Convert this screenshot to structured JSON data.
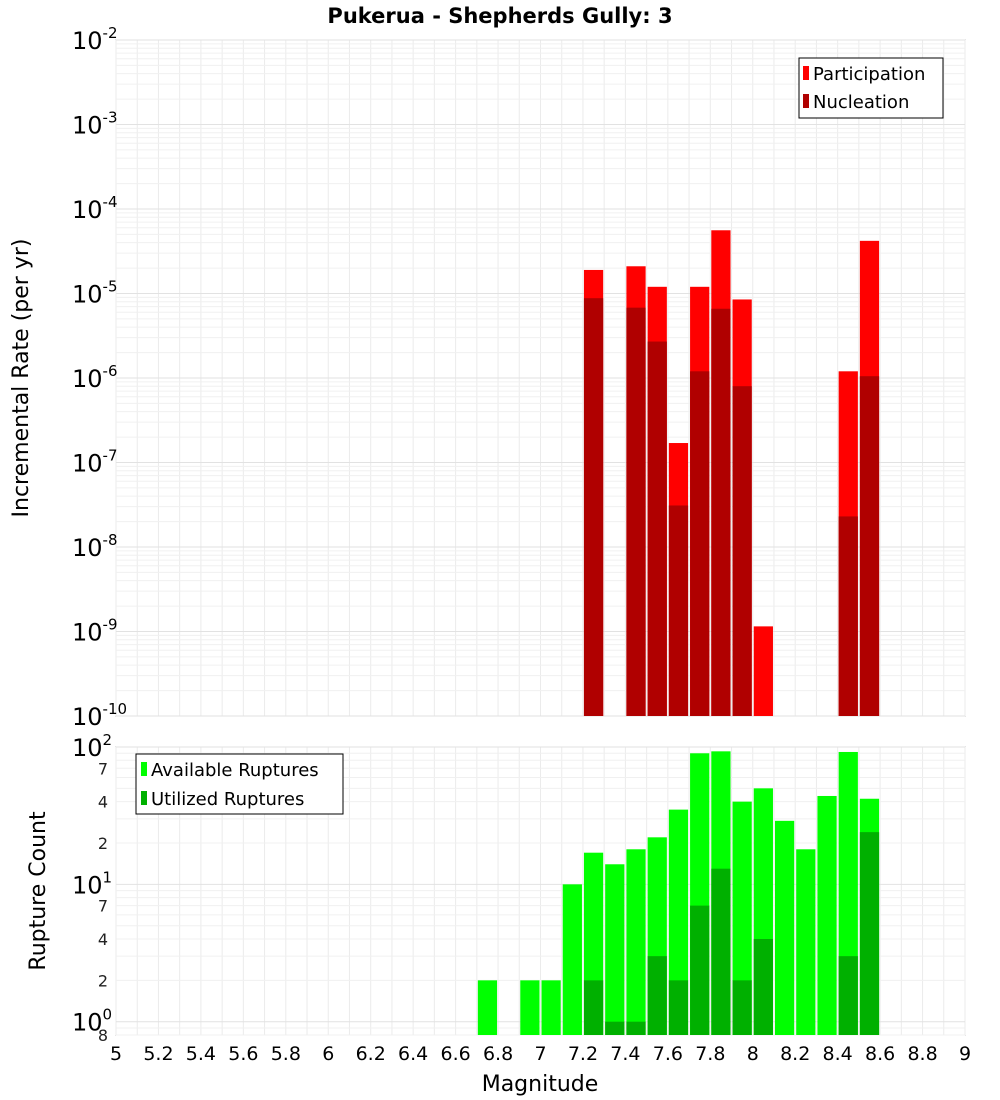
{
  "chart_data": [
    {
      "type": "bar",
      "title": "Pukerua - Shepherds Gully: 3",
      "xlabel": "",
      "ylabel": "Incremental Rate (per yr)",
      "xlim": [
        5,
        9
      ],
      "ylim": [
        1e-10,
        0.01
      ],
      "yscale": "log",
      "y_tick_exponents": [
        -2,
        -3,
        -4,
        -5,
        -6,
        -7,
        -8,
        -9,
        -10
      ],
      "grid": true,
      "legend_position": "top-right",
      "bar_width": 0.1,
      "series": [
        {
          "name": "Participation",
          "color": "#ff0000",
          "points": [
            {
              "x": 7.25,
              "y": 1.9e-05
            },
            {
              "x": 7.45,
              "y": 2.1e-05
            },
            {
              "x": 7.55,
              "y": 1.2e-05
            },
            {
              "x": 7.65,
              "y": 1.7e-07
            },
            {
              "x": 7.75,
              "y": 1.2e-05
            },
            {
              "x": 7.85,
              "y": 5.6e-05
            },
            {
              "x": 7.95,
              "y": 8.5e-06
            },
            {
              "x": 8.05,
              "y": 1.15e-09
            },
            {
              "x": 8.45,
              "y": 1.2e-06
            },
            {
              "x": 8.55,
              "y": 4.2e-05
            }
          ]
        },
        {
          "name": "Nucleation",
          "color": "#b00000",
          "points": [
            {
              "x": 7.25,
              "y": 8.8e-06
            },
            {
              "x": 7.45,
              "y": 6.8e-06
            },
            {
              "x": 7.55,
              "y": 2.7e-06
            },
            {
              "x": 7.65,
              "y": 3.1e-08
            },
            {
              "x": 7.75,
              "y": 1.2e-06
            },
            {
              "x": 7.85,
              "y": 6.6e-06
            },
            {
              "x": 7.95,
              "y": 8e-07
            },
            {
              "x": 8.45,
              "y": 2.3e-08
            },
            {
              "x": 8.55,
              "y": 1.05e-06
            }
          ]
        }
      ]
    },
    {
      "type": "bar",
      "title": "",
      "xlabel": "Magnitude",
      "ylabel": "Rupture Count",
      "xlim": [
        5,
        9
      ],
      "ylim": [
        0.8,
        100
      ],
      "yscale": "log",
      "x_ticks": [
        "5",
        "5.2",
        "5.4",
        "5.6",
        "5.8",
        "6",
        "6.2",
        "6.4",
        "6.6",
        "6.8",
        "7",
        "7.2",
        "7.4",
        "7.6",
        "7.8",
        "8",
        "8.2",
        "8.4",
        "8.6",
        "8.8",
        "9"
      ],
      "y_tick_exponents": [
        2,
        1,
        0
      ],
      "y_minor_labels": [
        {
          "value": 70,
          "label": "7"
        },
        {
          "value": 40,
          "label": "4"
        },
        {
          "value": 20,
          "label": "2"
        },
        {
          "value": 7,
          "label": "7"
        },
        {
          "value": 4,
          "label": "4"
        },
        {
          "value": 2,
          "label": "2"
        },
        {
          "value": 0.8,
          "label": "8"
        }
      ],
      "grid": true,
      "legend_position": "top-left",
      "bar_width": 0.1,
      "series": [
        {
          "name": "Available Ruptures",
          "color": "#00ff00",
          "points": [
            {
              "x": 6.75,
              "y": 2
            },
            {
              "x": 6.95,
              "y": 2
            },
            {
              "x": 7.05,
              "y": 2
            },
            {
              "x": 7.15,
              "y": 10
            },
            {
              "x": 7.25,
              "y": 17
            },
            {
              "x": 7.35,
              "y": 14
            },
            {
              "x": 7.45,
              "y": 18
            },
            {
              "x": 7.55,
              "y": 22
            },
            {
              "x": 7.65,
              "y": 35
            },
            {
              "x": 7.75,
              "y": 90
            },
            {
              "x": 7.85,
              "y": 93
            },
            {
              "x": 7.95,
              "y": 40
            },
            {
              "x": 8.05,
              "y": 50
            },
            {
              "x": 8.15,
              "y": 29
            },
            {
              "x": 8.25,
              "y": 18
            },
            {
              "x": 8.35,
              "y": 44
            },
            {
              "x": 8.45,
              "y": 92
            },
            {
              "x": 8.55,
              "y": 42
            }
          ]
        },
        {
          "name": "Utilized Ruptures",
          "color": "#00b000",
          "points": [
            {
              "x": 7.25,
              "y": 2
            },
            {
              "x": 7.35,
              "y": 1
            },
            {
              "x": 7.45,
              "y": 1
            },
            {
              "x": 7.55,
              "y": 3
            },
            {
              "x": 7.65,
              "y": 2
            },
            {
              "x": 7.75,
              "y": 7
            },
            {
              "x": 7.85,
              "y": 13
            },
            {
              "x": 7.95,
              "y": 2
            },
            {
              "x": 8.05,
              "y": 4
            },
            {
              "x": 8.45,
              "y": 3
            },
            {
              "x": 8.55,
              "y": 24
            }
          ]
        }
      ]
    }
  ]
}
